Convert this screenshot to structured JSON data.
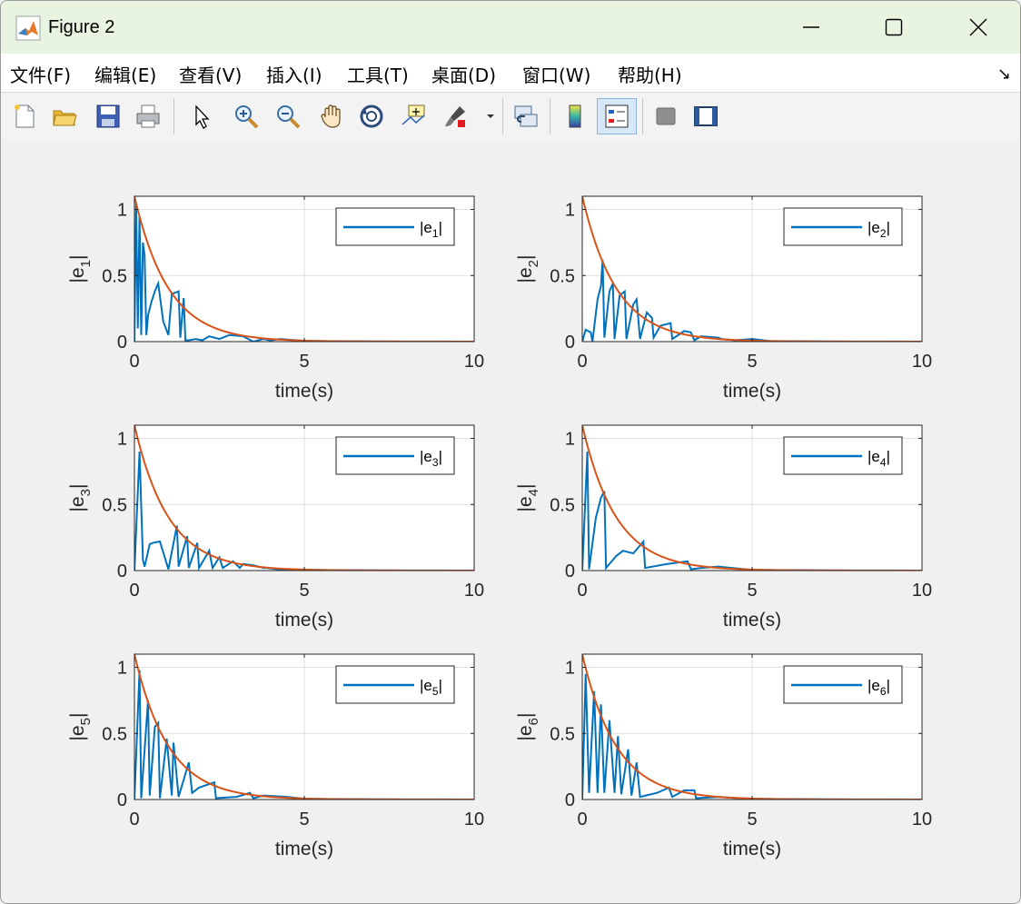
{
  "window": {
    "title": "Figure 2"
  },
  "menu": [
    "文件(F)",
    "编辑(E)",
    "查看(V)",
    "插入(I)",
    "工具(T)",
    "桌面(D)",
    "窗口(W)",
    "帮助(H)"
  ],
  "menu_overflow_icon": "arrow-icon",
  "toolbar": [
    {
      "name": "new-figure-icon"
    },
    {
      "name": "open-file-icon"
    },
    {
      "name": "save-icon"
    },
    {
      "name": "print-icon"
    },
    {
      "name": "edit-plot-icon"
    },
    {
      "name": "zoom-in-icon"
    },
    {
      "name": "zoom-out-icon"
    },
    {
      "name": "pan-icon"
    },
    {
      "name": "rotate-3d-icon"
    },
    {
      "name": "data-cursor-icon"
    },
    {
      "name": "brush-icon"
    },
    {
      "name": "link-plot-icon"
    },
    {
      "name": "colorbar-icon"
    },
    {
      "name": "legend-icon"
    },
    {
      "name": "hide-plot-tools-icon"
    },
    {
      "name": "show-plot-tools-icon"
    }
  ],
  "colors": {
    "series": "#0072bd",
    "bound": "#d95319",
    "titlebar": "#e8f4e0"
  },
  "chart_data": [
    {
      "type": "line",
      "xlabel": "time(s)",
      "ylabel_base": "|e",
      "ylabel_sub": "1",
      "ylabel_end": "|",
      "legend_base": "|e",
      "legend_sub": "1",
      "legend_end": "|",
      "legend_position": "top-right",
      "xlim": [
        0,
        10
      ],
      "ylim": [
        0,
        1.1
      ],
      "xticks": [
        "0",
        "5",
        "10"
      ],
      "yticks": [
        "0",
        "0.5",
        "1"
      ],
      "grid": true,
      "series": [
        {
          "x": [
            0,
            0.05,
            0.1,
            0.15,
            0.2,
            0.25,
            0.3,
            0.35,
            0.4,
            0.5,
            0.6,
            0.7,
            0.85,
            1.0,
            1.1,
            1.3,
            1.35,
            1.45,
            1.5,
            1.6,
            1.8,
            2.0,
            2.2,
            2.5,
            2.8,
            3.2,
            3.5,
            3.8,
            4.0,
            4.3,
            5,
            6,
            7,
            8,
            9,
            10
          ],
          "y": [
            0,
            1.05,
            0.1,
            0.95,
            0.05,
            0.75,
            0.65,
            0.05,
            0.2,
            0.3,
            0.38,
            0.44,
            0.15,
            0.05,
            0.36,
            0.38,
            0.03,
            0.33,
            0.01,
            0.01,
            0.02,
            0.01,
            0.04,
            0.02,
            0.05,
            0.04,
            0.0,
            0.02,
            0.01,
            0.02,
            0.005,
            0.003,
            0.002,
            0.001,
            0.0005,
            0.0
          ]
        },
        {
          "function": "bound",
          "amplitude": 1.1,
          "rate": 1.0
        }
      ]
    },
    {
      "type": "line",
      "xlabel": "time(s)",
      "ylabel_base": "|e",
      "ylabel_sub": "2",
      "ylabel_end": "|",
      "legend_base": "|e",
      "legend_sub": "2",
      "legend_end": "|",
      "legend_position": "top-right",
      "xlim": [
        0,
        10
      ],
      "ylim": [
        0,
        1.1
      ],
      "xticks": [
        "0",
        "5",
        "10"
      ],
      "yticks": [
        "0",
        "0.5",
        "1"
      ],
      "grid": true,
      "series": [
        {
          "x": [
            0,
            0.1,
            0.25,
            0.3,
            0.45,
            0.55,
            0.6,
            0.65,
            0.8,
            0.9,
            0.95,
            1.1,
            1.25,
            1.3,
            1.5,
            1.6,
            1.7,
            1.9,
            2.05,
            2.1,
            2.3,
            2.6,
            2.65,
            3.0,
            3.2,
            3.3,
            3.5,
            4.0,
            4.1,
            4.5,
            5.0,
            5.5,
            6,
            7,
            8,
            9,
            10
          ],
          "y": [
            0,
            0.09,
            0.07,
            0.0,
            0.32,
            0.42,
            0.62,
            0.03,
            0.38,
            0.44,
            0.02,
            0.35,
            0.38,
            0.02,
            0.28,
            0.32,
            0.02,
            0.22,
            0.18,
            0.03,
            0.12,
            0.14,
            0.02,
            0.08,
            0.07,
            0.01,
            0.04,
            0.03,
            0.02,
            0.01,
            0.02,
            0.005,
            0.003,
            0.002,
            0.001,
            0.0005,
            0.0
          ]
        },
        {
          "function": "bound",
          "amplitude": 1.1,
          "rate": 1.0
        }
      ]
    },
    {
      "type": "line",
      "xlabel": "time(s)",
      "ylabel_base": "|e",
      "ylabel_sub": "3",
      "ylabel_end": "|",
      "legend_base": "|e",
      "legend_sub": "3",
      "legend_end": "|",
      "legend_position": "top-right",
      "xlim": [
        0,
        10
      ],
      "ylim": [
        0,
        1.1
      ],
      "xticks": [
        "0",
        "5",
        "10"
      ],
      "yticks": [
        "0",
        "0.5",
        "1"
      ],
      "grid": true,
      "series": [
        {
          "x": [
            0,
            0.15,
            0.25,
            0.3,
            0.45,
            0.55,
            0.75,
            1.0,
            1.25,
            1.3,
            1.55,
            1.6,
            1.85,
            1.9,
            2.2,
            2.3,
            2.5,
            2.6,
            2.9,
            3.1,
            3.2,
            3.5,
            3.8,
            3.9,
            4.2,
            5.0,
            6,
            7,
            8,
            9,
            10
          ],
          "y": [
            0,
            0.9,
            0.08,
            0.03,
            0.2,
            0.21,
            0.22,
            0.01,
            0.34,
            0.03,
            0.26,
            0.02,
            0.21,
            0.02,
            0.15,
            0.02,
            0.1,
            0.02,
            0.07,
            0.02,
            0.05,
            0.04,
            0.02,
            0.02,
            0.01,
            0.005,
            0.003,
            0.002,
            0.001,
            0.0005,
            0.0
          ]
        },
        {
          "function": "bound",
          "amplitude": 1.1,
          "rate": 1.0
        }
      ]
    },
    {
      "type": "line",
      "xlabel": "time(s)",
      "ylabel_base": "|e",
      "ylabel_sub": "4",
      "ylabel_end": "|",
      "legend_base": "|e",
      "legend_sub": "4",
      "legend_end": "|",
      "legend_position": "top-right",
      "xlim": [
        0,
        10
      ],
      "ylim": [
        0,
        1.1
      ],
      "xticks": [
        "0",
        "5",
        "10"
      ],
      "yticks": [
        "0",
        "0.5",
        "1"
      ],
      "grid": true,
      "series": [
        {
          "x": [
            0,
            0.15,
            0.2,
            0.4,
            0.55,
            0.65,
            0.7,
            1.0,
            1.2,
            1.5,
            1.8,
            1.85,
            2.5,
            3.1,
            3.2,
            3.5,
            4.0,
            5.0,
            6,
            7,
            8,
            9,
            10
          ],
          "y": [
            0,
            0.9,
            0.01,
            0.4,
            0.55,
            0.6,
            0.02,
            0.11,
            0.15,
            0.13,
            0.22,
            0.02,
            0.05,
            0.07,
            0.01,
            0.02,
            0.03,
            0.005,
            0.003,
            0.002,
            0.001,
            0.0005,
            0.0
          ]
        },
        {
          "function": "bound",
          "amplitude": 1.1,
          "rate": 1.0
        }
      ]
    },
    {
      "type": "line",
      "xlabel": "time(s)",
      "ylabel_base": "|e",
      "ylabel_sub": "5",
      "ylabel_end": "|",
      "legend_base": "|e",
      "legend_sub": "5",
      "legend_end": "|",
      "legend_position": "top-right",
      "xlim": [
        0,
        10
      ],
      "ylim": [
        0,
        1.1
      ],
      "xticks": [
        "0",
        "5",
        "10"
      ],
      "yticks": [
        "0",
        "0.5",
        "1"
      ],
      "grid": true,
      "series": [
        {
          "x": [
            0,
            0.15,
            0.2,
            0.4,
            0.45,
            0.6,
            0.7,
            0.75,
            0.95,
            1.1,
            1.15,
            1.3,
            1.6,
            1.7,
            1.9,
            2.35,
            2.4,
            3.0,
            3.4,
            3.5,
            3.8,
            4.5,
            5.0,
            6,
            7,
            8,
            9,
            10
          ],
          "y": [
            0,
            0.98,
            0.01,
            0.75,
            0.03,
            0.55,
            0.58,
            0.01,
            0.46,
            0.03,
            0.43,
            0.02,
            0.28,
            0.05,
            0.09,
            0.13,
            0.01,
            0.02,
            0.05,
            0.01,
            0.03,
            0.02,
            0.005,
            0.003,
            0.002,
            0.001,
            0.0005,
            0.0
          ]
        },
        {
          "function": "bound",
          "amplitude": 1.1,
          "rate": 1.0
        }
      ]
    },
    {
      "type": "line",
      "xlabel": "time(s)",
      "ylabel_base": "|e",
      "ylabel_sub": "6",
      "ylabel_end": "|",
      "legend_base": "|e",
      "legend_sub": "6",
      "legend_end": "|",
      "legend_position": "top-right",
      "xlim": [
        0,
        10
      ],
      "ylim": [
        0,
        1.1
      ],
      "xticks": [
        "0",
        "5",
        "10"
      ],
      "yticks": [
        "0",
        "0.5",
        "1"
      ],
      "grid": true,
      "series": [
        {
          "x": [
            0,
            0.1,
            0.2,
            0.35,
            0.45,
            0.55,
            0.65,
            0.8,
            0.95,
            1.05,
            1.15,
            1.35,
            1.45,
            1.6,
            1.7,
            2.2,
            2.55,
            2.65,
            3.0,
            3.3,
            3.35,
            4.0,
            4.6,
            5.0,
            6,
            7,
            8,
            9,
            10
          ],
          "y": [
            0,
            0.95,
            0.05,
            0.82,
            0.05,
            0.72,
            0.05,
            0.6,
            0.05,
            0.48,
            0.04,
            0.38,
            0.03,
            0.28,
            0.02,
            0.05,
            0.09,
            0.02,
            0.07,
            0.07,
            0.01,
            0.02,
            0.01,
            0.005,
            0.003,
            0.002,
            0.001,
            0.0005,
            0.0
          ]
        },
        {
          "function": "bound",
          "amplitude": 1.1,
          "rate": 1.0
        }
      ]
    }
  ]
}
